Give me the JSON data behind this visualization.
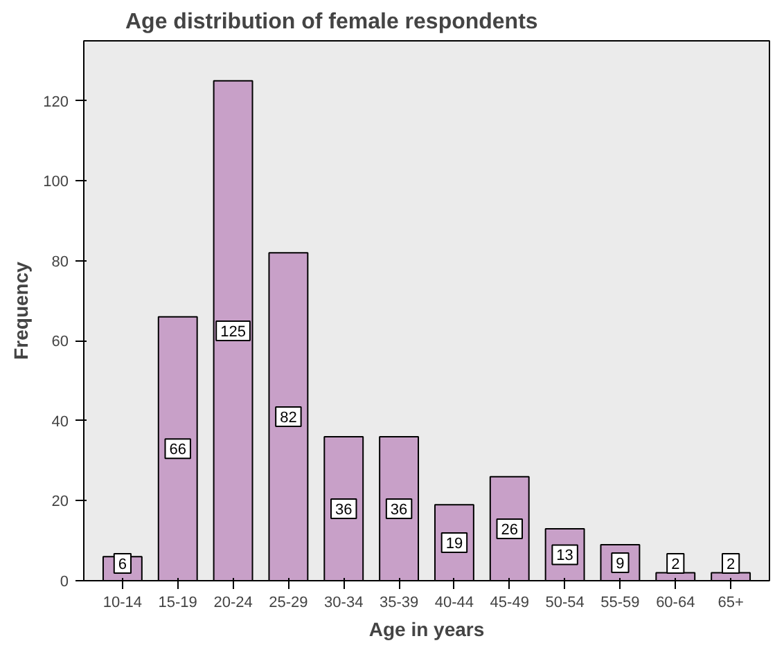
{
  "chart_data": {
    "type": "bar",
    "title": "Age distribution of female respondents",
    "xlabel": "Age in years",
    "ylabel": "Frequency",
    "categories": [
      "10-14",
      "15-19",
      "20-24",
      "25-29",
      "30-34",
      "35-39",
      "40-44",
      "45-49",
      "50-54",
      "55-59",
      "60-64",
      "65+"
    ],
    "values": [
      6,
      66,
      125,
      82,
      36,
      36,
      19,
      26,
      13,
      9,
      2,
      2
    ],
    "color": "#c8a0c8",
    "ylim": [
      0,
      135
    ],
    "yticks": [
      0,
      20,
      40,
      60,
      80,
      100,
      120
    ],
    "grid": false,
    "data_labels": true
  }
}
